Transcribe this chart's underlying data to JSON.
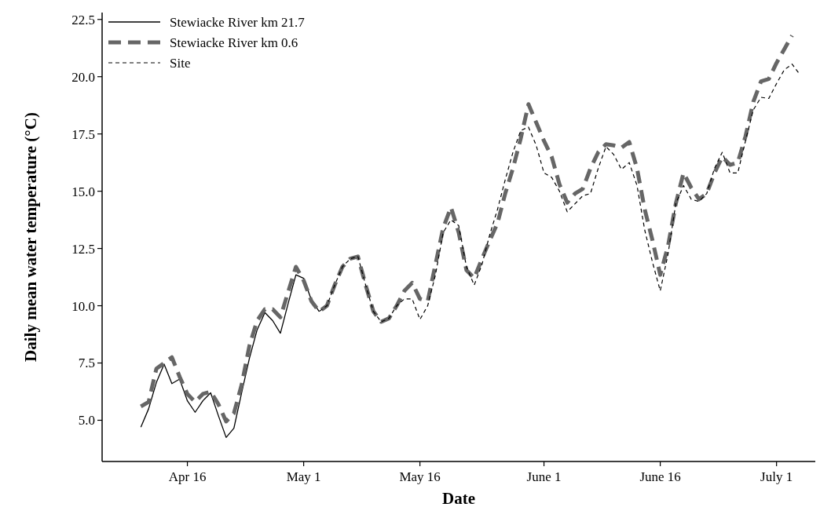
{
  "chart_data": {
    "type": "line",
    "xlabel": "Date",
    "ylabel": "Daily mean water temperature (°C)",
    "xlim": [
      "--04-05",
      "--07-06"
    ],
    "ylim": [
      3.2,
      22.8
    ],
    "xticks": [
      {
        "value": "--04-16",
        "label": "Apr 16"
      },
      {
        "value": "--05-01",
        "label": "May 1"
      },
      {
        "value": "--05-16",
        "label": "May 16"
      },
      {
        "value": "--06-01",
        "label": "June 1"
      },
      {
        "value": "--06-16",
        "label": "June 16"
      },
      {
        "value": "--07-01",
        "label": "July 1"
      }
    ],
    "yticks": [
      {
        "value": 5,
        "label": "5.0"
      },
      {
        "value": 7.5,
        "label": "7.5"
      },
      {
        "value": 10,
        "label": "10.0"
      },
      {
        "value": 12.5,
        "label": "12.5"
      },
      {
        "value": 15,
        "label": "15.0"
      },
      {
        "value": 17.5,
        "label": "17.5"
      },
      {
        "value": 20,
        "label": "20.0"
      },
      {
        "value": 22.5,
        "label": "22.5"
      }
    ],
    "grid": false,
    "legend": "top left",
    "series": [
      {
        "name": "Stewiacke River km 21.7",
        "color": "#000000",
        "line_style": "solid",
        "x": [
          "--04-10",
          "--04-11",
          "--04-12",
          "--04-13",
          "--04-14",
          "--04-15",
          "--04-16",
          "--04-17",
          "--04-18",
          "--04-19",
          "--04-20",
          "--04-21",
          "--04-22",
          "--04-23",
          "--04-24",
          "--04-25",
          "--04-26",
          "--04-27",
          "--04-28",
          "--04-29",
          "--04-30",
          "--05-01",
          "--05-02",
          "--05-03"
        ],
        "values": [
          4.7,
          5.5,
          6.65,
          7.45,
          6.6,
          6.8,
          5.85,
          5.35,
          5.85,
          6.2,
          5.2,
          4.25,
          4.65,
          6.2,
          7.7,
          8.95,
          9.7,
          9.35,
          8.8,
          10.1,
          11.35,
          11.2,
          10.25,
          9.75
        ]
      },
      {
        "name": "Stewiacke River km 0.6",
        "color": "#666666",
        "line_style": "dashed",
        "x": [
          "--04-10",
          "--04-11",
          "--04-12",
          "--04-13",
          "--04-14",
          "--04-15",
          "--04-16",
          "--04-17",
          "--04-18",
          "--04-19",
          "--04-20",
          "--04-21",
          "--04-22",
          "--04-23",
          "--04-24",
          "--04-25",
          "--04-26",
          "--04-27",
          "--04-28",
          "--04-29",
          "--04-30",
          "--05-01",
          "--05-02",
          "--05-03",
          "--05-04",
          "--05-05",
          "--05-06",
          "--05-07",
          "--05-08",
          "--05-09",
          "--05-10",
          "--05-11",
          "--05-12",
          "--05-13",
          "--05-14",
          "--05-15",
          "--05-16",
          "--05-17",
          "--05-18",
          "--05-19",
          "--05-20",
          "--05-21",
          "--05-22",
          "--05-23",
          "--05-24",
          "--05-25",
          "--05-26",
          "--05-27",
          "--05-28",
          "--05-29",
          "--05-30",
          "--05-31",
          "--06-01",
          "--06-02",
          "--06-03",
          "--06-04",
          "--06-05",
          "--06-06",
          "--06-07",
          "--06-08",
          "--06-09",
          "--06-10",
          "--06-11",
          "--06-12",
          "--06-13",
          "--06-14",
          "--06-15",
          "--06-16",
          "--06-17",
          "--06-18",
          "--06-19",
          "--06-20",
          "--06-21",
          "--06-22",
          "--06-23",
          "--06-24",
          "--06-25",
          "--06-26",
          "--06-27",
          "--06-28",
          "--06-29",
          "--06-30",
          "--07-01",
          "--07-02",
          "--07-03"
        ],
        "values": [
          5.6,
          5.8,
          7.25,
          7.5,
          7.75,
          6.9,
          6.15,
          5.8,
          6.15,
          6.25,
          5.7,
          4.95,
          5.3,
          6.55,
          8.25,
          9.35,
          9.85,
          9.85,
          9.5,
          10.6,
          11.7,
          11.1,
          10.2,
          9.75,
          10.0,
          10.9,
          11.7,
          12.05,
          12.15,
          10.9,
          9.75,
          9.3,
          9.45,
          10.0,
          10.65,
          11.0,
          10.3,
          10.2,
          11.8,
          13.4,
          14.3,
          13.2,
          11.55,
          11.2,
          12.05,
          12.85,
          13.6,
          14.9,
          16.0,
          17.3,
          18.8,
          18.0,
          17.2,
          16.5,
          15.3,
          14.5,
          14.9,
          15.1,
          16.0,
          16.7,
          17.05,
          17.0,
          16.9,
          17.15,
          16.0,
          14.2,
          12.85,
          11.35,
          12.6,
          14.45,
          15.8,
          15.15,
          14.65,
          14.9,
          15.8,
          16.5,
          16.15,
          16.25,
          17.4,
          18.9,
          19.8,
          19.9,
          20.6,
          21.2,
          21.8
        ]
      },
      {
        "name": "Site",
        "color": "#000000",
        "line_style": "dashed",
        "x": [
          "--05-03",
          "--05-04",
          "--05-05",
          "--05-06",
          "--05-07",
          "--05-08",
          "--05-09",
          "--05-10",
          "--05-11",
          "--05-12",
          "--05-13",
          "--05-14",
          "--05-15",
          "--05-16",
          "--05-17",
          "--05-18",
          "--05-19",
          "--05-20",
          "--05-21",
          "--05-22",
          "--05-23",
          "--05-24",
          "--05-25",
          "--05-26",
          "--05-27",
          "--05-28",
          "--05-29",
          "--05-30",
          "--05-31",
          "--06-01",
          "--06-02",
          "--06-03",
          "--06-04",
          "--06-05",
          "--06-06",
          "--06-07",
          "--06-08",
          "--06-09",
          "--06-10",
          "--06-11",
          "--06-12",
          "--06-13",
          "--06-14",
          "--06-15",
          "--06-16",
          "--06-17",
          "--06-18",
          "--06-19",
          "--06-20",
          "--06-21",
          "--06-22",
          "--06-23",
          "--06-24",
          "--06-25",
          "--06-26",
          "--06-27",
          "--06-28",
          "--06-29",
          "--06-30",
          "--07-01",
          "--07-02",
          "--07-03",
          "--07-04"
        ],
        "values": [
          9.75,
          10.0,
          10.9,
          11.7,
          12.05,
          12.15,
          10.9,
          9.75,
          9.3,
          9.45,
          10.0,
          10.3,
          10.3,
          9.4,
          10.0,
          11.35,
          13.2,
          13.75,
          13.5,
          11.7,
          10.9,
          11.8,
          13.1,
          14.2,
          15.5,
          16.7,
          17.65,
          17.8,
          17.0,
          15.8,
          15.6,
          15.0,
          14.1,
          14.45,
          14.8,
          14.9,
          16.0,
          16.95,
          16.6,
          15.95,
          16.25,
          15.25,
          13.3,
          11.9,
          10.65,
          12.25,
          14.45,
          15.25,
          14.65,
          14.55,
          14.9,
          16.0,
          16.7,
          15.8,
          15.8,
          17.2,
          18.55,
          19.1,
          19.05,
          19.7,
          20.3,
          20.55,
          20.1
        ]
      }
    ]
  }
}
